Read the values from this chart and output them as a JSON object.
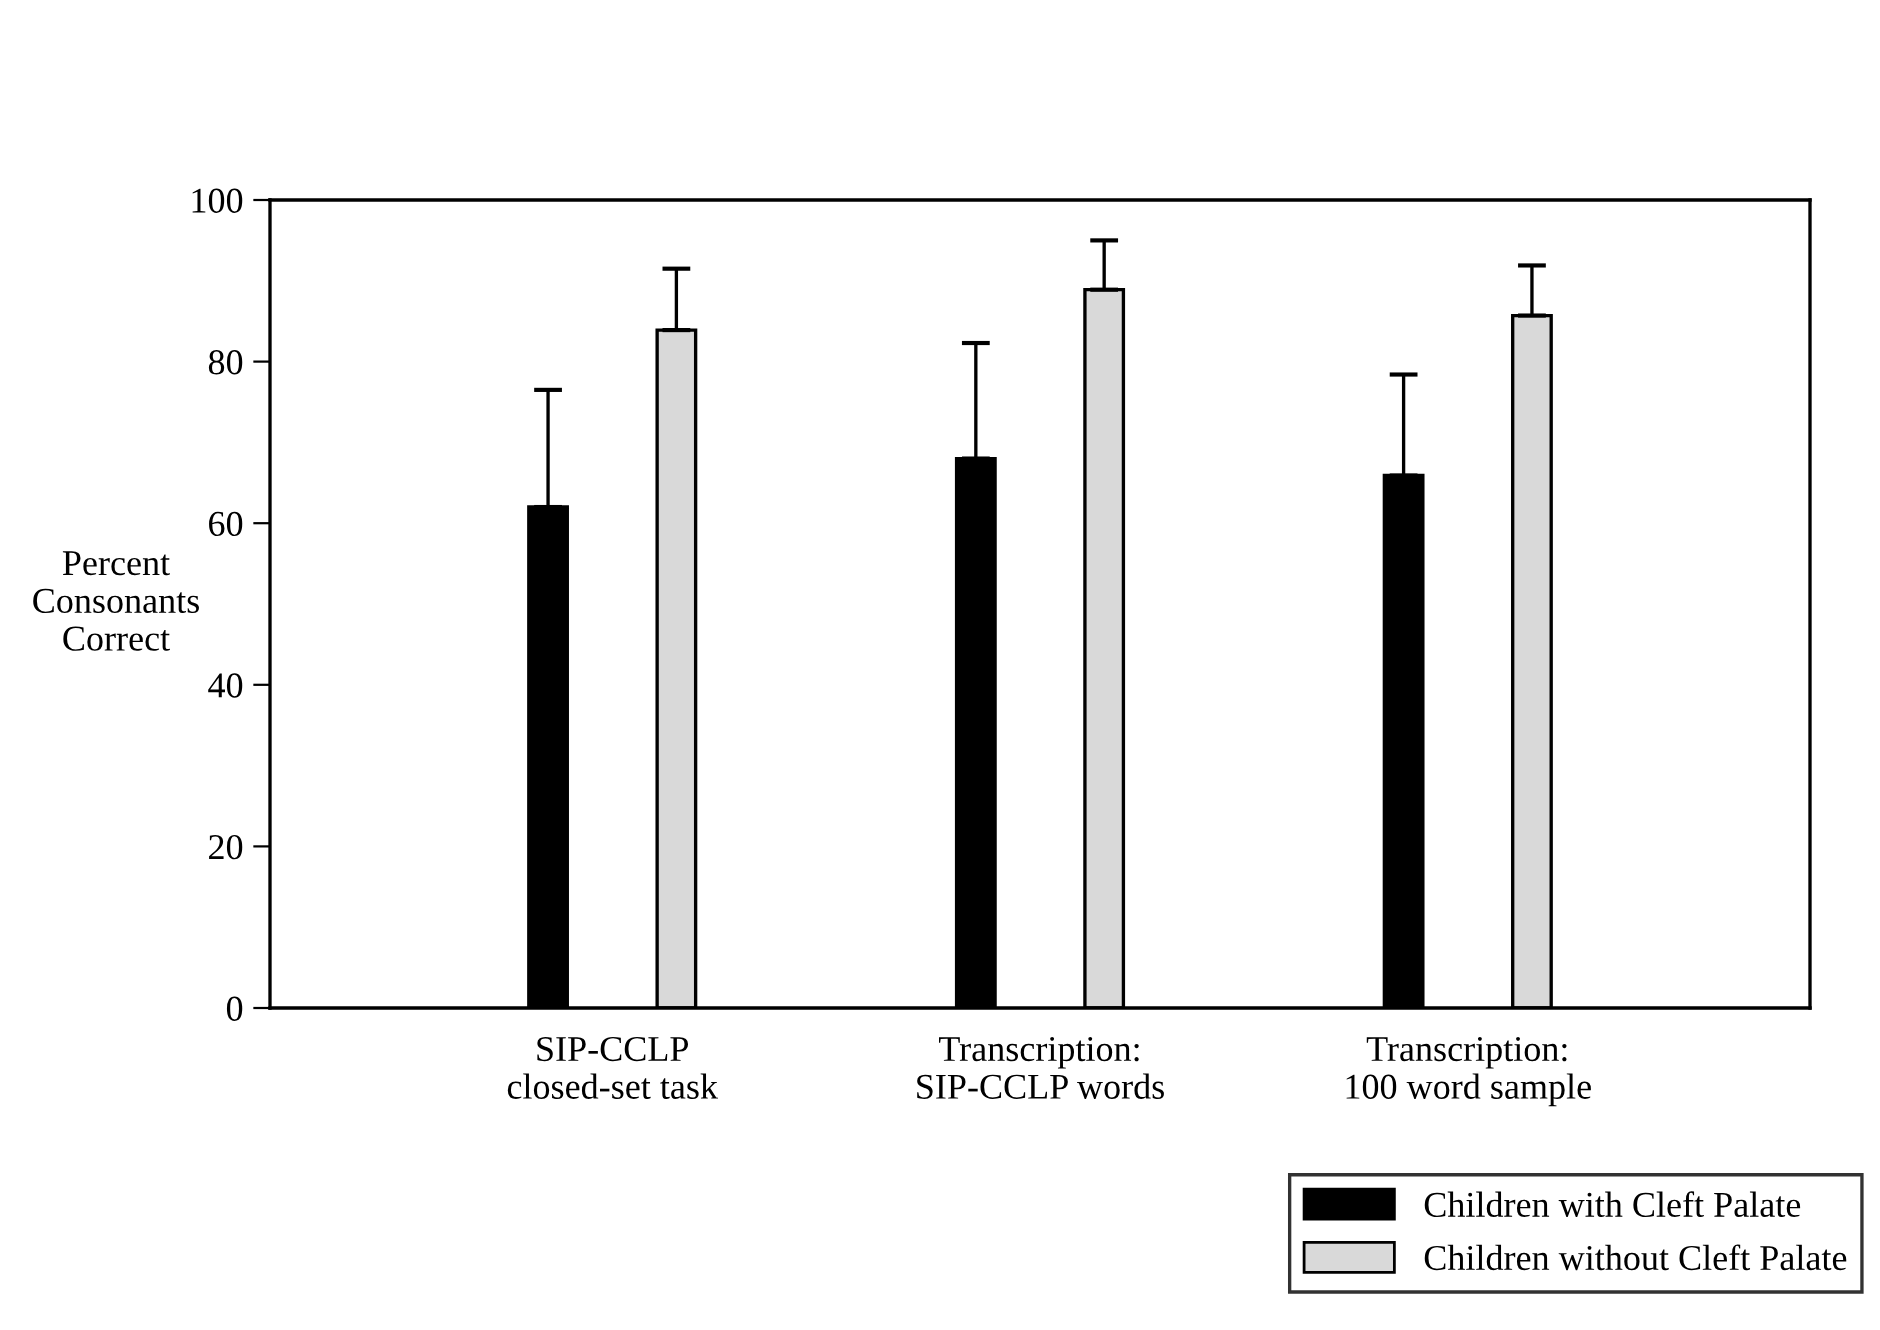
{
  "chart_data": {
    "type": "bar",
    "ylabel": "Percent\nConsonants\nCorrect",
    "categories": [
      "SIP-CCLP\nclosed-set task",
      "Transcription:\nSIP-CCLP words",
      "Transcription:\n100 word sample"
    ],
    "series": [
      {
        "name": "Children with Cleft Palate",
        "color": "#000000",
        "values": [
          62.0,
          68.0,
          65.9
        ],
        "errors": [
          [
            62.0,
            76.5
          ],
          [
            68.0,
            82.3
          ],
          [
            65.9,
            78.4
          ]
        ]
      },
      {
        "name": "Children without Cleft Palate",
        "color": "#d9d9d9",
        "values": [
          83.9,
          88.9,
          85.7
        ],
        "errors": [
          [
            83.9,
            91.5
          ],
          [
            88.9,
            95.0
          ],
          [
            85.7,
            91.9
          ]
        ]
      }
    ],
    "ylim": [
      0,
      100
    ],
    "yticks": [
      0,
      20,
      40,
      60,
      80,
      100
    ],
    "grid": false,
    "legend": "bottom right"
  }
}
